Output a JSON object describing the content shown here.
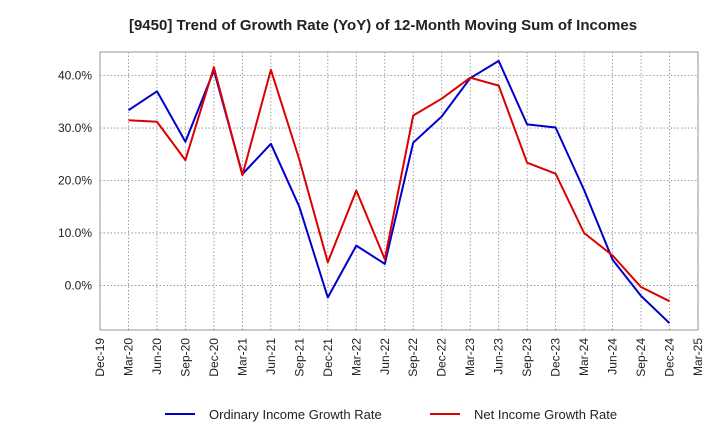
{
  "chart_data": {
    "type": "line",
    "title": "[9450]  Trend of Growth Rate (YoY) of 12-Month Moving Sum of Incomes",
    "xlabel": "",
    "ylabel": "",
    "x_ticks": [
      "Dec-19",
      "Mar-20",
      "Jun-20",
      "Sep-20",
      "Dec-20",
      "Mar-21",
      "Jun-21",
      "Sep-21",
      "Dec-21",
      "Mar-22",
      "Jun-22",
      "Sep-22",
      "Dec-22",
      "Mar-23",
      "Jun-23",
      "Sep-23",
      "Dec-23",
      "Mar-24",
      "Jun-24",
      "Sep-24",
      "Dec-24",
      "Mar-25"
    ],
    "x": [
      "Mar-20",
      "Jun-20",
      "Sep-20",
      "Dec-20",
      "Mar-21",
      "Jun-21",
      "Sep-21",
      "Dec-21",
      "Mar-22",
      "Jun-22",
      "Sep-22",
      "Dec-22",
      "Mar-23",
      "Jun-23",
      "Sep-23",
      "Dec-23",
      "Mar-24",
      "Jun-24",
      "Sep-24",
      "Dec-24"
    ],
    "y_ticks": [
      "0.0%",
      "10.0%",
      "20.0%",
      "30.0%",
      "40.0%"
    ],
    "y_tick_values": [
      0,
      10,
      20,
      30,
      40
    ],
    "ylim": [
      -8.5,
      44.5
    ],
    "grid": true,
    "legend_position": "bottom",
    "series": [
      {
        "name": "Ordinary Income Growth Rate",
        "color": "#0000cc",
        "values": [
          33.4,
          37.0,
          27.4,
          41.0,
          21.2,
          27.0,
          15.0,
          -2.3,
          7.6,
          4.1,
          27.2,
          32.2,
          39.5,
          42.8,
          30.7,
          30.1,
          18.2,
          4.9,
          -2.0,
          -7.2
        ]
      },
      {
        "name": "Net Income Growth Rate",
        "color": "#dd0000",
        "values": [
          31.5,
          31.2,
          23.9,
          41.6,
          21.0,
          41.1,
          24.0,
          4.4,
          18.1,
          5.0,
          32.4,
          35.6,
          39.6,
          38.1,
          23.4,
          21.3,
          10.0,
          5.7,
          -0.3,
          -3.0
        ]
      }
    ]
  }
}
